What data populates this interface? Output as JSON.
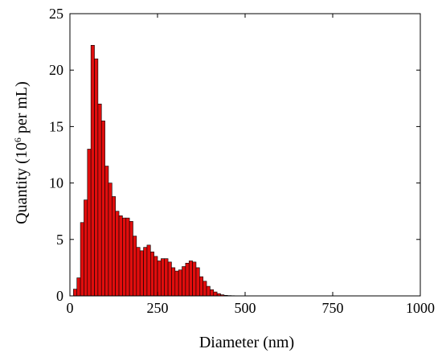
{
  "chart_data": {
    "type": "bar",
    "title": "",
    "xlabel": "Diameter (nm)",
    "ylabel": {
      "prefix": "Quantity (10",
      "superscript": "6",
      "suffix": " per mL)"
    },
    "xlim": [
      0,
      1000
    ],
    "ylim": [
      0,
      25
    ],
    "xticks": [
      "0",
      "250",
      "500",
      "750",
      "1000"
    ],
    "yticks": [
      "0",
      "5",
      "10",
      "15",
      "20",
      "25"
    ],
    "grid": false,
    "legend": "none",
    "bar_color": "#e00d0d",
    "bar_edge_color": "#000000",
    "bin_width": 10,
    "bin_centers": [
      15,
      25,
      35,
      45,
      55,
      65,
      75,
      85,
      95,
      105,
      115,
      125,
      135,
      145,
      155,
      165,
      175,
      185,
      195,
      205,
      215,
      225,
      235,
      245,
      255,
      265,
      275,
      285,
      295,
      305,
      315,
      325,
      335,
      345,
      355,
      365,
      375,
      385,
      395,
      405,
      415,
      425,
      435,
      445,
      455,
      465,
      475
    ],
    "values": [
      0.6,
      1.6,
      6.5,
      8.5,
      13,
      22.2,
      21,
      17,
      15.5,
      11.5,
      10,
      8.8,
      7.5,
      7.1,
      6.9,
      6.9,
      6.6,
      5.3,
      4.3,
      4.0,
      4.3,
      4.5,
      3.9,
      3.5,
      3.1,
      3.3,
      3.3,
      3.0,
      2.5,
      2.2,
      2.3,
      2.6,
      2.9,
      3.1,
      3.0,
      2.5,
      1.7,
      1.3,
      0.85,
      0.55,
      0.35,
      0.2,
      0.1,
      0.05,
      0.03,
      0.02,
      0.01
    ]
  }
}
